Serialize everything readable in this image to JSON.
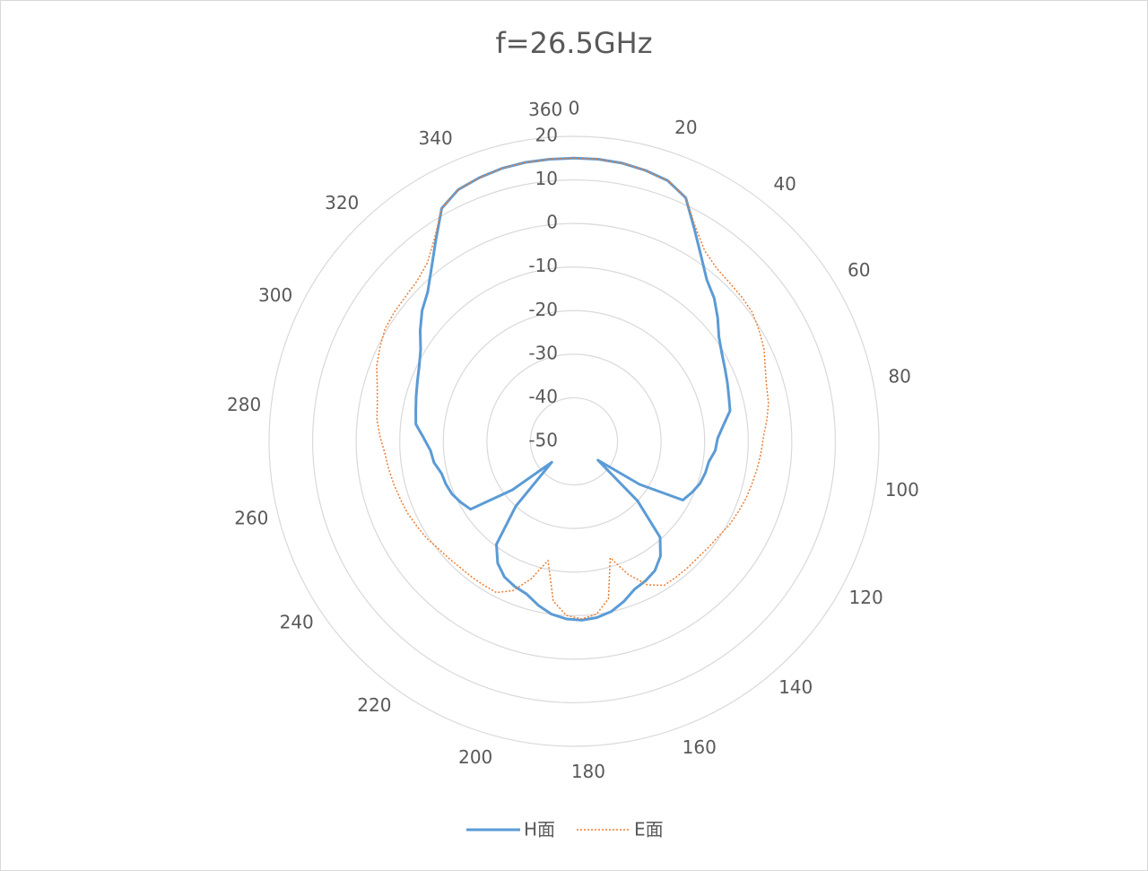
{
  "chart_data": {
    "type": "radar",
    "title": "f=26.5GHz",
    "categories": [
      0,
      null,
      null,
      null,
      20,
      null,
      null,
      null,
      40,
      null,
      null,
      null,
      60,
      null,
      null,
      null,
      80,
      null,
      null,
      null,
      100,
      null,
      null,
      null,
      120,
      null,
      null,
      null,
      140,
      null,
      null,
      null,
      160,
      null,
      null,
      null,
      180,
      null,
      null,
      null,
      200,
      null,
      null,
      null,
      220,
      null,
      null,
      null,
      240,
      null,
      null,
      null,
      260,
      null,
      null,
      null,
      280,
      null,
      null,
      null,
      300,
      null,
      null,
      null,
      320,
      null,
      null,
      null,
      340,
      null,
      null,
      null,
      360
    ],
    "rlim": [
      -50,
      20
    ],
    "rticks": [
      -50,
      -40,
      -30,
      -20,
      -10,
      0,
      10,
      20
    ],
    "grid": true,
    "series": [
      {
        "name": "H面",
        "color": "#5b9bd5",
        "dash": "solid",
        "values": [
          15,
          15,
          14.8,
          14.3,
          13.6,
          11.5,
          6,
          1.5,
          -2,
          -4,
          -6.5,
          -9,
          -10.5,
          -11.5,
          -12.3,
          -13,
          -13.5,
          -15.5,
          -17,
          -17.5,
          -18.7,
          -19,
          -19.5,
          -20.5,
          -21.6,
          -32,
          -43,
          -30,
          -20.4,
          -17,
          -15,
          -14,
          -13.3,
          -11.5,
          -10,
          -9.2,
          -8.9,
          -9.2,
          -10,
          -11.5,
          -13.3,
          -14,
          -15,
          -17,
          -20.4,
          -30,
          -43,
          -32,
          -21.6,
          -20.5,
          -19.5,
          -19,
          -18.7,
          -17.5,
          -17,
          -15.5,
          -13.5,
          -13,
          -12.3,
          -11.5,
          -10.5,
          -9,
          -6.5,
          -4,
          -2,
          1.5,
          6,
          11.5,
          13.6,
          14.3,
          14.8,
          15,
          15
        ]
      },
      {
        "name": "E面",
        "color": "#ed7d31",
        "dash": "dotted",
        "values": [
          15,
          15,
          14.8,
          14.3,
          13.6,
          11.5,
          6.5,
          3,
          1.5,
          1,
          0.8,
          0.5,
          -0.5,
          -1.5,
          -3,
          -4,
          -4.5,
          -5.5,
          -6.5,
          -7,
          -7.5,
          -8,
          -8.4,
          -9,
          -9.5,
          -10.3,
          -10.7,
          -11,
          -11,
          -11,
          -11,
          -13,
          -17,
          -22,
          -13,
          -10,
          -9.2,
          -10,
          -13,
          -22,
          -17,
          -13,
          -11,
          -11,
          -11,
          -11,
          -10.7,
          -10.3,
          -9.5,
          -9,
          -8.4,
          -8,
          -7.5,
          -7,
          -6.5,
          -5.5,
          -4.5,
          -4,
          -3,
          -1.5,
          -0.5,
          0.5,
          0.8,
          1,
          1.5,
          3,
          6.5,
          11.5,
          13.6,
          14.3,
          14.8,
          15,
          15
        ]
      }
    ]
  }
}
